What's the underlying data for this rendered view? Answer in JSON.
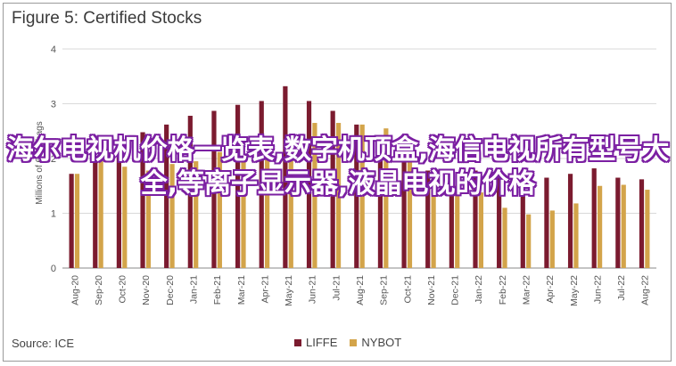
{
  "chart_data": {
    "type": "bar",
    "title": "Figure 5: Certified Stocks",
    "ylabel": "Millions of 60kg bags",
    "xlabel": "",
    "ylim": [
      0,
      4
    ],
    "yticks": [
      0,
      1,
      2,
      3,
      4
    ],
    "grid": true,
    "legend_position": "bottom",
    "categories": [
      "Aug-20",
      "Sep-20",
      "Oct-20",
      "Nov-20",
      "Dec-20",
      "Jan-21",
      "Feb-21",
      "Mar-21",
      "Apr-21",
      "May-21",
      "Jun-21",
      "Jul-21",
      "Aug-21",
      "Sep-21",
      "Oct-21",
      "Nov-21",
      "Dec-21",
      "Jan-22",
      "Feb-22",
      "Mar-22",
      "Apr-22",
      "May-22",
      "Jun-22",
      "Jul-22",
      "Aug-22"
    ],
    "series": [
      {
        "name": "LIFFE",
        "color": "#7b1b2f",
        "values": [
          1.72,
          1.95,
          2.08,
          2.48,
          2.62,
          2.78,
          2.87,
          2.98,
          3.05,
          3.32,
          3.05,
          2.87,
          2.62,
          2.18,
          1.97,
          1.78,
          1.72,
          1.78,
          1.78,
          1.78,
          1.65,
          1.72,
          1.82,
          1.65,
          1.62
        ]
      },
      {
        "name": "NYBOT",
        "color": "#d3a44a",
        "values": [
          1.72,
          1.95,
          1.85,
          1.78,
          1.9,
          1.95,
          2.12,
          1.95,
          2.12,
          2.42,
          2.65,
          2.65,
          2.62,
          2.55,
          2.02,
          1.6,
          1.52,
          1.38,
          1.1,
          0.98,
          1.05,
          1.18,
          1.5,
          1.52,
          1.43
        ]
      }
    ],
    "source": "Source: ICE"
  },
  "overlay_text": "海尔电视机价格一览表,数字机顶盒,海信电视所有型号大全,等离子显示器,液晶电视的价格"
}
